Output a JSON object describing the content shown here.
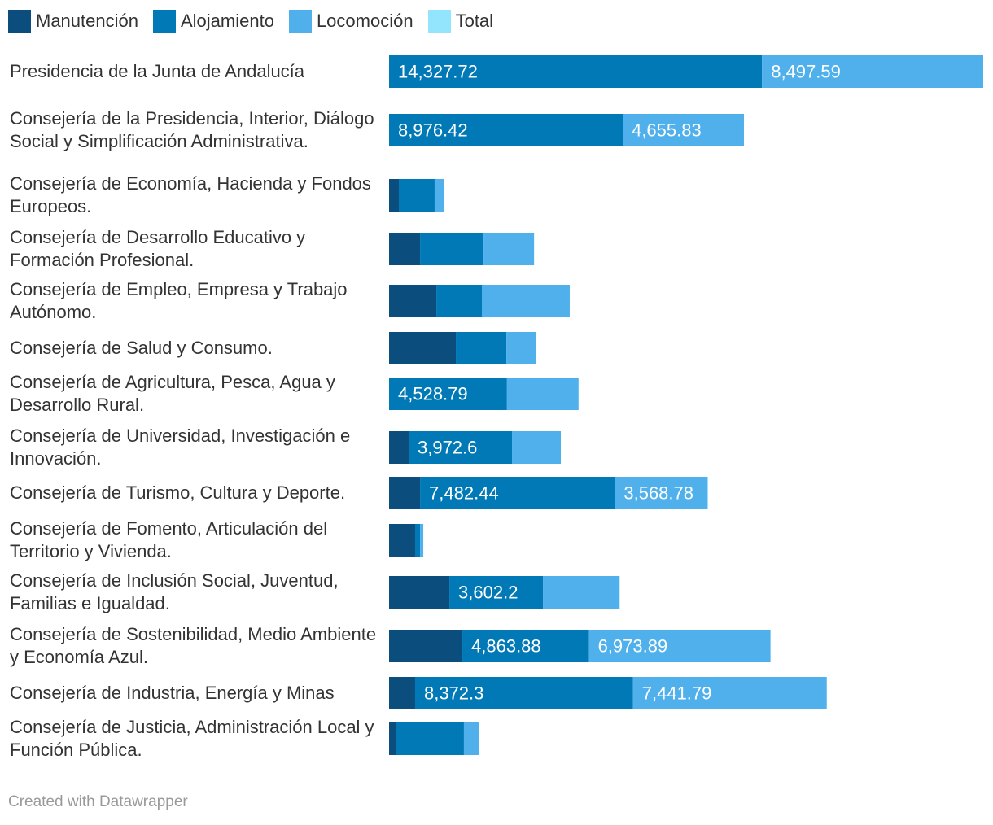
{
  "chart_data": {
    "type": "bar",
    "orientation": "horizontal",
    "stacked": true,
    "legend_position": "top",
    "series": [
      {
        "name": "Manutención",
        "color": "#0b4d7d"
      },
      {
        "name": "Alojamiento",
        "color": "#0079b6"
      },
      {
        "name": "Locomoción",
        "color": "#4fb0ec"
      },
      {
        "name": "Total",
        "color": "#93e4fd"
      }
    ],
    "max_total": 22825.31,
    "rows": [
      {
        "label": "Presidencia de la Junta de Andalucía",
        "values": [
          0,
          14327.72,
          8497.59
        ],
        "labels": [
          "",
          "14,327.72",
          "8,497.59"
        ]
      },
      {
        "label": "Consejería de la Presidencia, Interior, Diálogo Social y Simplificación Administrativa.",
        "values": [
          0,
          8976.42,
          4655.83
        ],
        "labels": [
          "",
          "8,976.42",
          "4,655.83"
        ]
      },
      {
        "label": "Consejería de Economía, Hacienda y Fondos Europeos.",
        "values": [
          375,
          1375,
          375
        ],
        "labels": [
          "",
          "",
          ""
        ]
      },
      {
        "label": "Consejería de Desarrollo Educativo y Formación Profesional.",
        "values": [
          1190,
          2440,
          1940
        ],
        "labels": [
          "",
          "",
          ""
        ]
      },
      {
        "label": "Consejería de Empleo, Empresa y Trabajo Autónomo.",
        "values": [
          1815,
          1750,
          3375
        ],
        "labels": [
          "",
          "",
          ""
        ]
      },
      {
        "label": "Consejería de Salud y Consumo.",
        "values": [
          2565,
          1940,
          1125
        ],
        "labels": [
          "",
          "",
          ""
        ]
      },
      {
        "label": "Consejería de Agricultura, Pesca, Agua y Desarrollo Rural.",
        "values": [
          0,
          4528.79,
          2750
        ],
        "labels": [
          "",
          "4,528.79",
          ""
        ]
      },
      {
        "label": "Consejería de Universidad, Investigación e Innovación.",
        "values": [
          750,
          3972.6,
          1875
        ],
        "labels": [
          "",
          "3,972.6",
          ""
        ]
      },
      {
        "label": "Consejería de Turismo, Cultura y Deporte.",
        "values": [
          1190,
          7482.44,
          3568.78
        ],
        "labels": [
          "",
          "7,482.44",
          "3,568.78"
        ]
      },
      {
        "label": "Consejería de Fomento, Articulación del Territorio y Vivienda.",
        "values": [
          1000,
          190,
          125
        ],
        "labels": [
          "",
          "",
          ""
        ]
      },
      {
        "label": "Consejería de Inclusión Social, Juventud, Familias e Igualdad.",
        "values": [
          2315,
          3602.2,
          2940
        ],
        "labels": [
          "",
          "3,602.2",
          ""
        ]
      },
      {
        "label": "Consejería de Sostenibilidad, Medio Ambiente y Economía Azul.",
        "values": [
          2815,
          4863.88,
          6973.89
        ],
        "labels": [
          "",
          "4,863.88",
          "6,973.89"
        ]
      },
      {
        "label": "Consejería de Industria, Energía y Minas",
        "values": [
          1000,
          8372.3,
          7441.79
        ],
        "labels": [
          "",
          "8,372.3",
          "7,441.79"
        ]
      },
      {
        "label": "Consejería de Justicia, Administración Local y Función Pública.",
        "values": [
          250,
          2625,
          565
        ],
        "labels": [
          "",
          "",
          ""
        ]
      }
    ]
  },
  "footer": {
    "text": "Created with Datawrapper"
  }
}
